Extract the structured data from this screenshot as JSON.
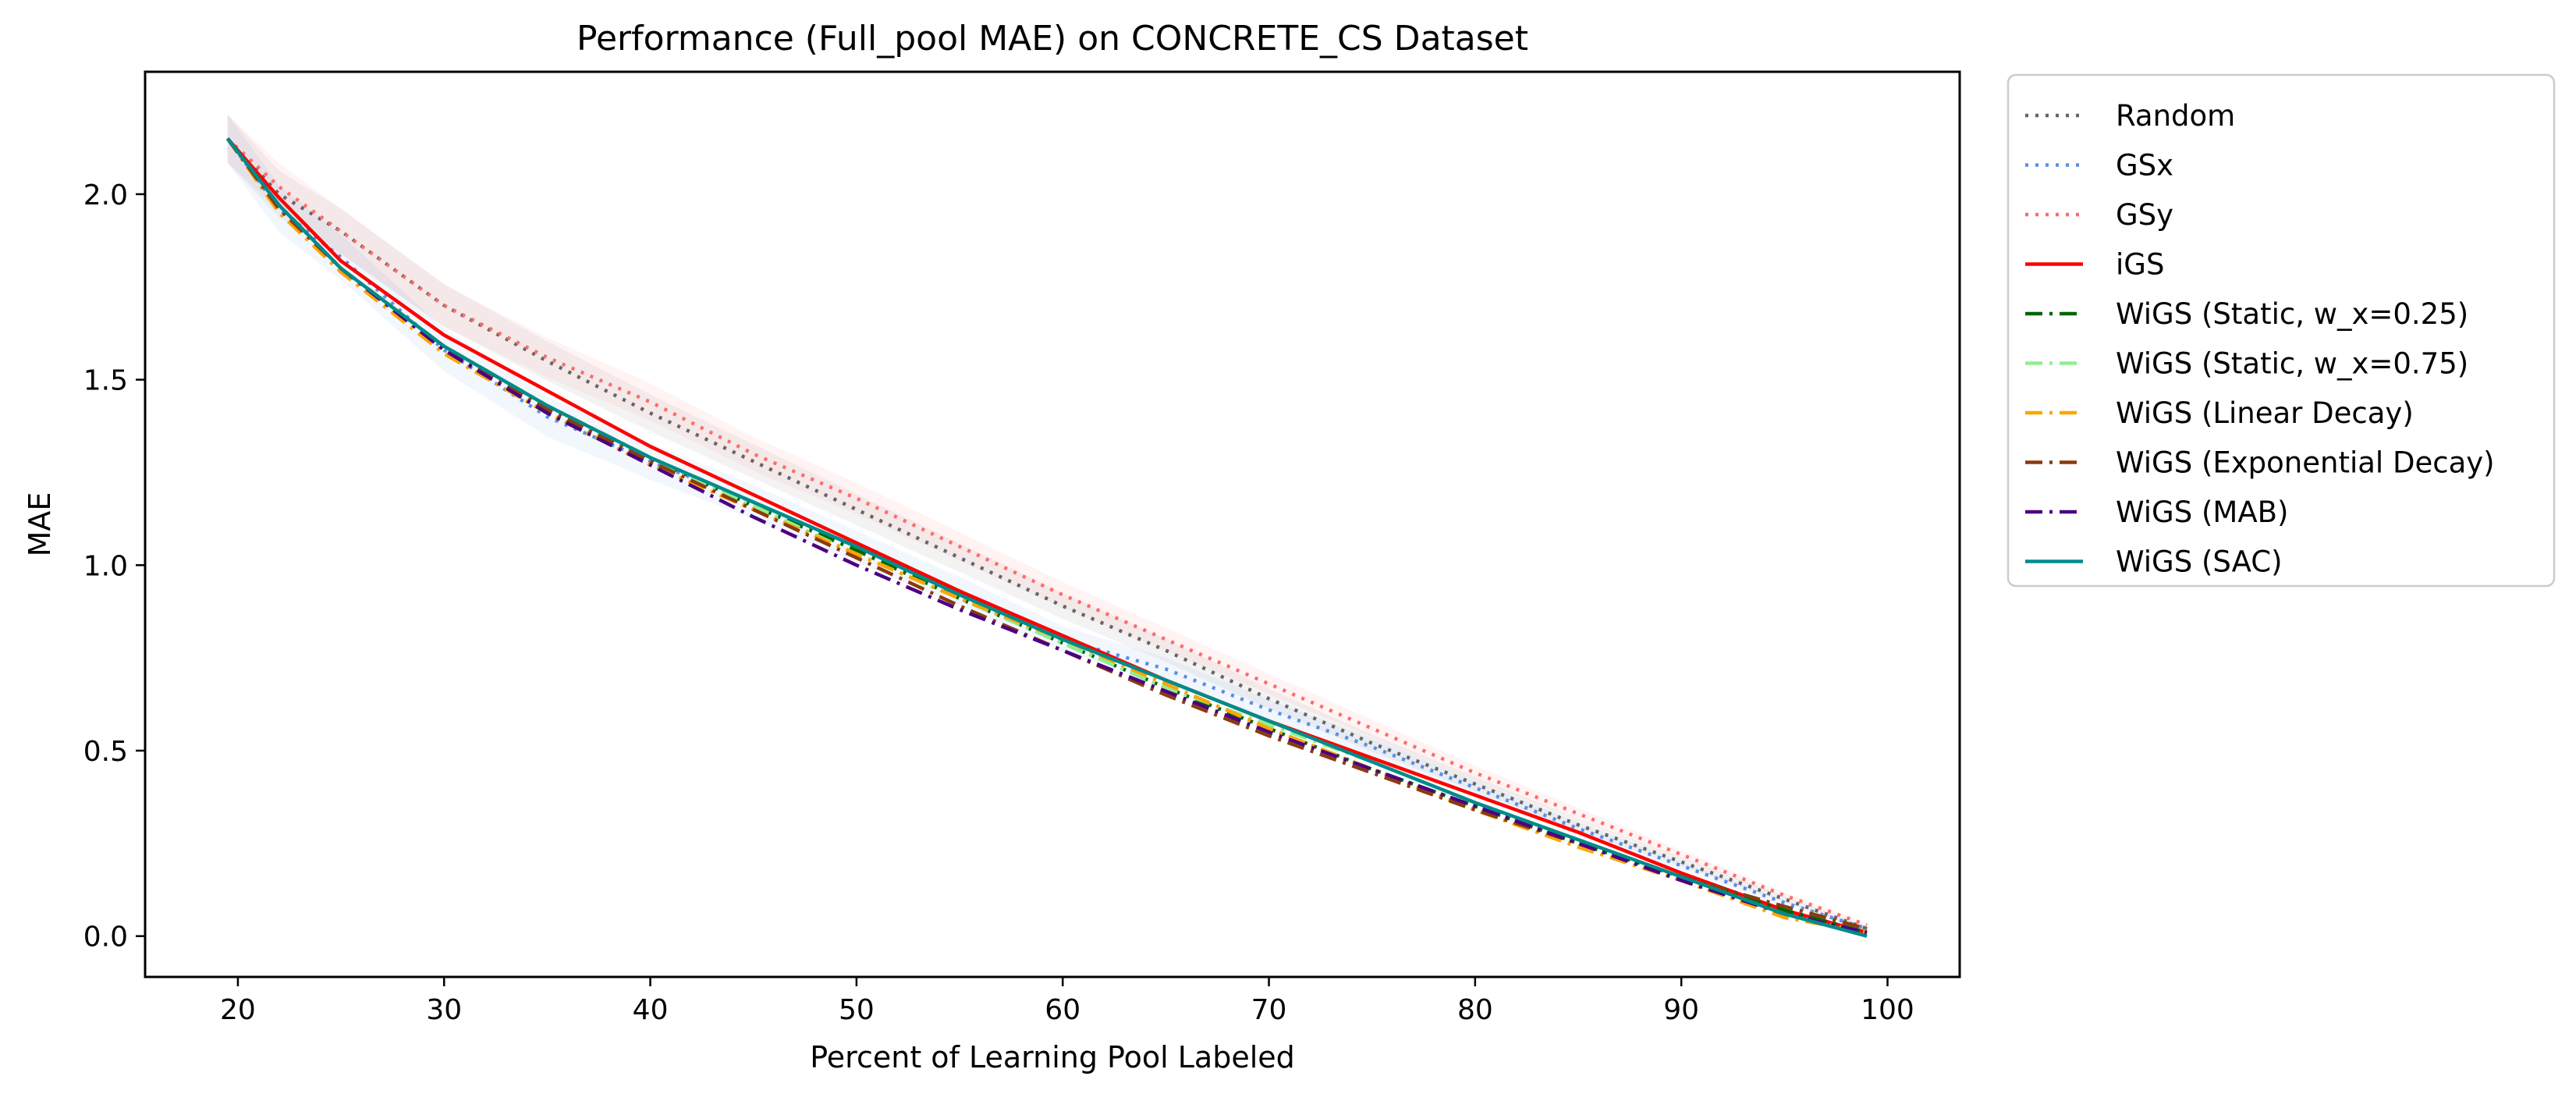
{
  "chart_data": {
    "type": "line",
    "title": "Performance (Full_pool MAE) on CONCRETE_CS Dataset",
    "xlabel": "Percent of Learning Pool Labeled",
    "ylabel": "MAE",
    "xlim": [
      15.5,
      103.5
    ],
    "ylim": [
      -0.11,
      2.33
    ],
    "xticks": [
      20,
      30,
      40,
      50,
      60,
      70,
      80,
      90,
      100
    ],
    "yticks": [
      0.0,
      0.5,
      1.0,
      1.5,
      2.0
    ],
    "ytick_labels": [
      "0.0",
      "0.5",
      "1.0",
      "1.5",
      "2.0"
    ],
    "grid": false,
    "legend_position": "outside-right-top",
    "x": [
      19.5,
      22,
      25,
      30,
      35,
      40,
      45,
      50,
      55,
      60,
      65,
      70,
      75,
      80,
      85,
      90,
      95,
      99
    ],
    "series": [
      {
        "name": "Random",
        "color": "#666666",
        "dash": "dotted",
        "band": true,
        "values": [
          2.15,
          2.0,
          1.9,
          1.7,
          1.55,
          1.41,
          1.28,
          1.15,
          1.02,
          0.89,
          0.77,
          0.64,
          0.52,
          0.41,
          0.3,
          0.2,
          0.1,
          0.02
        ]
      },
      {
        "name": "GSx",
        "color": "#5b8ee6",
        "dash": "dotted",
        "band": true,
        "values": [
          2.15,
          1.96,
          1.83,
          1.58,
          1.4,
          1.28,
          1.17,
          1.05,
          0.93,
          0.8,
          0.72,
          0.61,
          0.51,
          0.4,
          0.29,
          0.19,
          0.09,
          0.02
        ]
      },
      {
        "name": "GSy",
        "color": "#ff6b6b",
        "dash": "dotted",
        "band": true,
        "values": [
          2.15,
          2.02,
          1.9,
          1.7,
          1.56,
          1.44,
          1.3,
          1.18,
          1.05,
          0.92,
          0.8,
          0.68,
          0.56,
          0.44,
          0.33,
          0.22,
          0.11,
          0.03
        ]
      },
      {
        "name": "iGS",
        "color": "#ff0000",
        "dash": "solid",
        "band": false,
        "values": [
          2.15,
          1.99,
          1.82,
          1.62,
          1.47,
          1.32,
          1.19,
          1.06,
          0.93,
          0.81,
          0.69,
          0.58,
          0.48,
          0.38,
          0.28,
          0.17,
          0.07,
          0.01
        ]
      },
      {
        "name": "WiGS (Static, w_x=0.25)",
        "color": "#006400",
        "dash": "dashdot",
        "band": false,
        "values": [
          2.15,
          1.97,
          1.8,
          1.59,
          1.43,
          1.29,
          1.16,
          1.04,
          0.91,
          0.79,
          0.67,
          0.56,
          0.45,
          0.35,
          0.25,
          0.16,
          0.07,
          0.01
        ]
      },
      {
        "name": "WiGS (Static, w_x=0.75)",
        "color": "#90ee90",
        "dash": "dashdot",
        "band": false,
        "values": [
          2.15,
          1.95,
          1.8,
          1.57,
          1.41,
          1.29,
          1.16,
          1.03,
          0.91,
          0.79,
          0.67,
          0.57,
          0.47,
          0.36,
          0.25,
          0.16,
          0.06,
          0.01
        ]
      },
      {
        "name": "WiGS (Linear Decay)",
        "color": "#ffa500",
        "dash": "dashdot",
        "band": false,
        "values": [
          2.15,
          1.95,
          1.79,
          1.57,
          1.41,
          1.27,
          1.15,
          1.03,
          0.91,
          0.8,
          0.68,
          0.56,
          0.45,
          0.34,
          0.24,
          0.15,
          0.05,
          0.01
        ]
      },
      {
        "name": "WiGS (Exponential Decay)",
        "color": "#8b3a0f",
        "dash": "dashdot",
        "band": false,
        "values": [
          2.15,
          1.96,
          1.8,
          1.58,
          1.42,
          1.28,
          1.15,
          1.02,
          0.89,
          0.77,
          0.65,
          0.54,
          0.44,
          0.34,
          0.25,
          0.16,
          0.08,
          0.02
        ]
      },
      {
        "name": "WiGS (MAB)",
        "color": "#4b0082",
        "dash": "dashdot",
        "band": false,
        "values": [
          2.15,
          1.97,
          1.8,
          1.58,
          1.41,
          1.27,
          1.13,
          1.0,
          0.88,
          0.77,
          0.66,
          0.55,
          0.45,
          0.35,
          0.25,
          0.15,
          0.06,
          0.01
        ]
      },
      {
        "name": "WiGS (SAC)",
        "color": "#008b8b",
        "dash": "solid",
        "band": false,
        "values": [
          2.15,
          1.97,
          1.8,
          1.59,
          1.43,
          1.29,
          1.17,
          1.05,
          0.92,
          0.8,
          0.69,
          0.58,
          0.47,
          0.36,
          0.26,
          0.16,
          0.06,
          0.0
        ]
      }
    ]
  }
}
